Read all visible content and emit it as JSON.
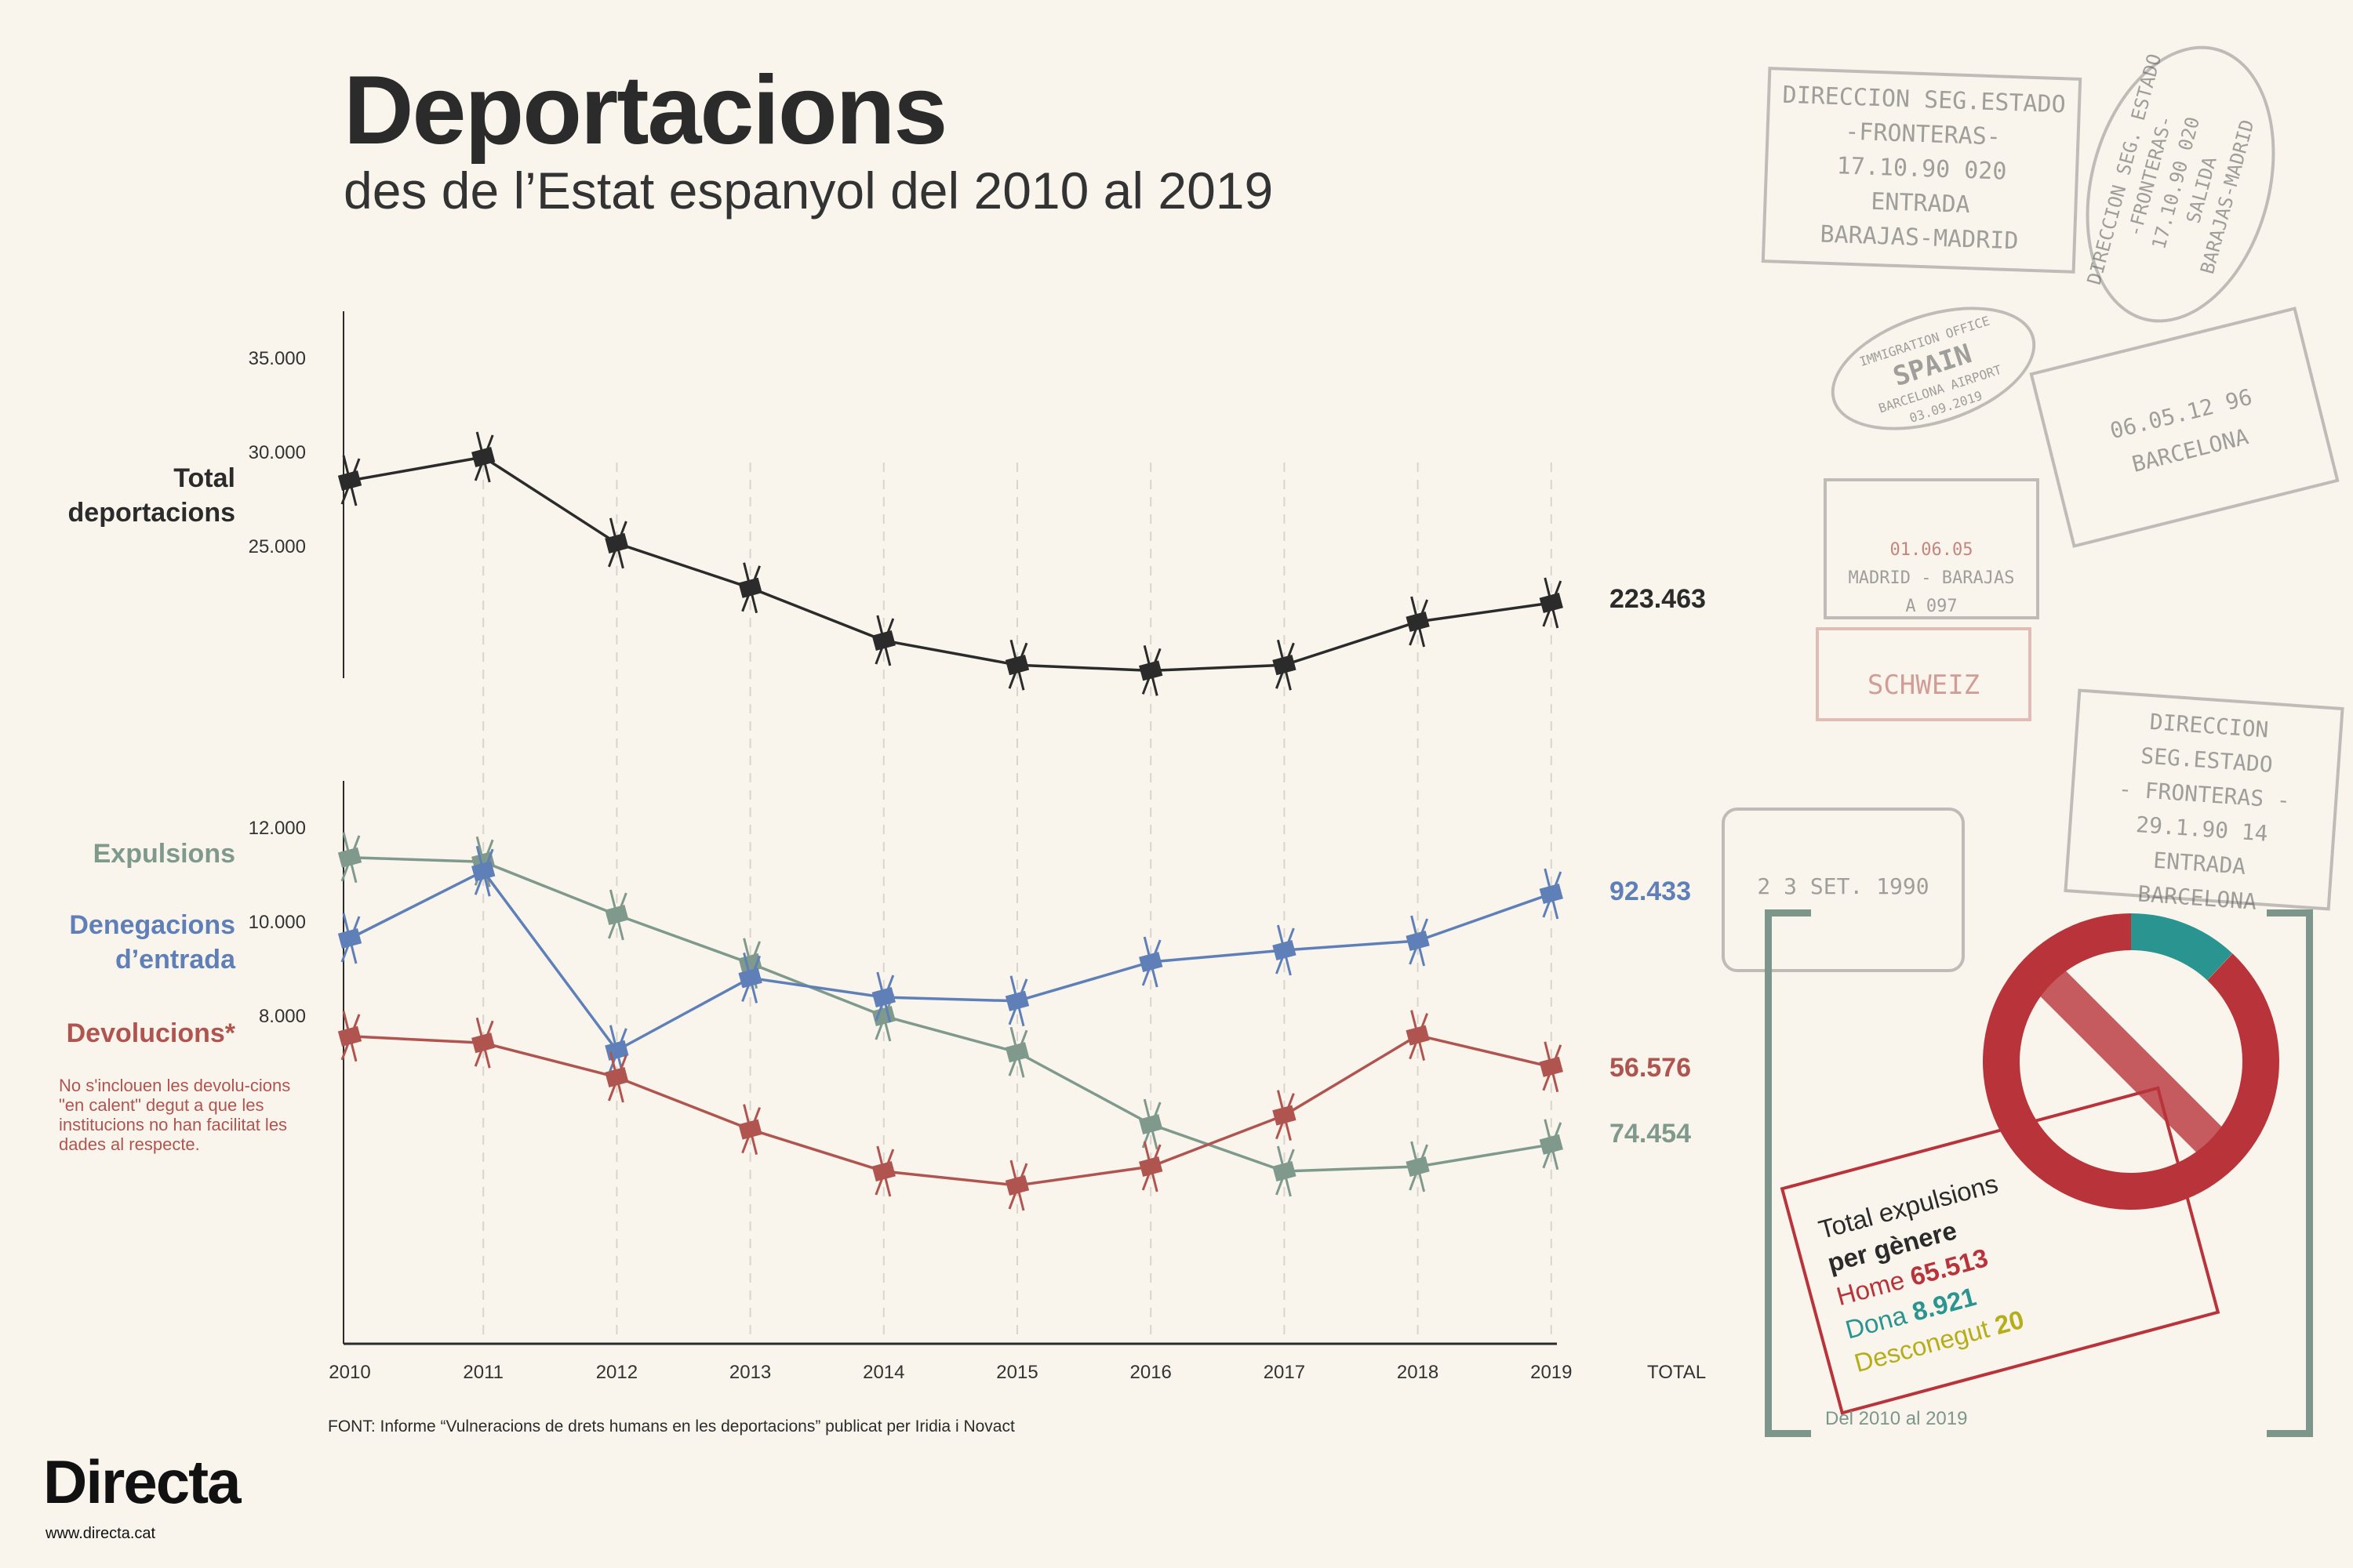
{
  "header": {
    "title": "Deportacions",
    "subtitle": "des de l’Estat espanyol del 2010 al 2019"
  },
  "chart_data": [
    {
      "type": "line",
      "x": [
        2010,
        2011,
        2012,
        2013,
        2014,
        2015,
        2016,
        2017,
        2018,
        2019
      ],
      "x_tick_labels": [
        "2010",
        "2011",
        "2012",
        "2013",
        "2014",
        "2015",
        "2016",
        "2017",
        "2018",
        "2019"
      ],
      "total_label": "TOTAL",
      "y_ticks": [
        "35.000",
        "30.000",
        "25.000"
      ],
      "y_tick_values": [
        35000,
        30000,
        25000
      ],
      "ylim": [
        15500,
        37500
      ],
      "series": [
        {
          "name": "Total deportacions",
          "color": "#2b2b2b",
          "total": "223.463",
          "values": [
            28500,
            29750,
            25170,
            22800,
            20000,
            18700,
            18400,
            18700,
            21000,
            22000
          ]
        }
      ],
      "grid": "vertical dashed"
    },
    {
      "type": "line",
      "x": [
        2010,
        2011,
        2012,
        2013,
        2014,
        2015,
        2016,
        2017,
        2018,
        2019
      ],
      "y_ticks": [
        "12.000",
        "10.000",
        "8.000"
      ],
      "y_tick_values": [
        12000,
        10000,
        8000
      ],
      "ylim": [
        0,
        13300
      ],
      "series": [
        {
          "name": "Expulsions",
          "color": "#7f9a8c",
          "total": "74.454",
          "values": [
            11370,
            11280,
            10150,
            9120,
            8000,
            7230,
            5700,
            4700,
            4800,
            5270
          ]
        },
        {
          "name": "Denegacions d’entrada",
          "name_lines": [
            "Denegacions",
            "d’entrada"
          ],
          "color": "#5f7fb8",
          "total": "92.433",
          "values": [
            9650,
            11080,
            7270,
            8810,
            8400,
            8320,
            9150,
            9400,
            9600,
            10600
          ]
        },
        {
          "name": "Devolucions*",
          "color": "#b05450",
          "total": "56.576",
          "values": [
            7570,
            7430,
            6700,
            5590,
            4700,
            4400,
            4800,
            5890,
            7590,
            6920
          ]
        }
      ],
      "note": "No s'inclouen les devolu-cions \"en calent\" degut a que les institucions no han facilitat les dades al respecte.",
      "grid": "vertical dashed"
    },
    {
      "type": "pie",
      "title": "Total expulsions",
      "title_bold": "per gènere",
      "slices": [
        {
          "label": "Dona",
          "value": 8921,
          "value_text": "8.921",
          "color": "#2a9490"
        },
        {
          "label": "Desconegut",
          "value": 20,
          "value_text": "20",
          "color": "#c4bd2a"
        },
        {
          "label": "Home",
          "value": 65513,
          "value_text": "65.513",
          "color": "#b8343a"
        }
      ],
      "period": "Del 2010 al 2019"
    }
  ],
  "source": "FONT: Informe “Vulneracions de drets humans en les deportacions” publicat per Iridia i Novact",
  "brand": {
    "logo": "Directa",
    "url": "www.directa.cat"
  },
  "stamps": [
    {
      "lines": [
        "DIRECCION SEG.ESTADO",
        "-FRONTERAS-",
        "17.10.90   020",
        "ENTRADA",
        "BARAJAS-MADRID"
      ]
    },
    {
      "lines": [
        "DIRECCION SEG. ESTADO",
        "-FRONTERAS-",
        "17.10.90  020",
        "SALIDA",
        "BARAJAS-MADRID"
      ]
    },
    {
      "lines": [
        "IMMIGRATION OFFICE",
        "SPAIN",
        "BARCELONA AIRPORT",
        "03.09.2019"
      ]
    },
    {
      "lines": [
        "06.05.12  96",
        "BARCELONA"
      ]
    },
    {
      "lines": [
        "01.06.05",
        "MADRID - BARAJAS",
        "A 097"
      ]
    },
    {
      "lines": [
        "SCHWEIZ"
      ]
    },
    {
      "lines": [
        "DIRECCION SEG.ESTADO",
        "- FRONTERAS -",
        "29.1.90   14",
        "ENTRADA",
        "BARCELONA"
      ]
    },
    {
      "lines": [
        "2 3 SET. 1990"
      ]
    }
  ],
  "colors": {
    "background": "#f9f5ed",
    "frame": "#7d968c"
  }
}
